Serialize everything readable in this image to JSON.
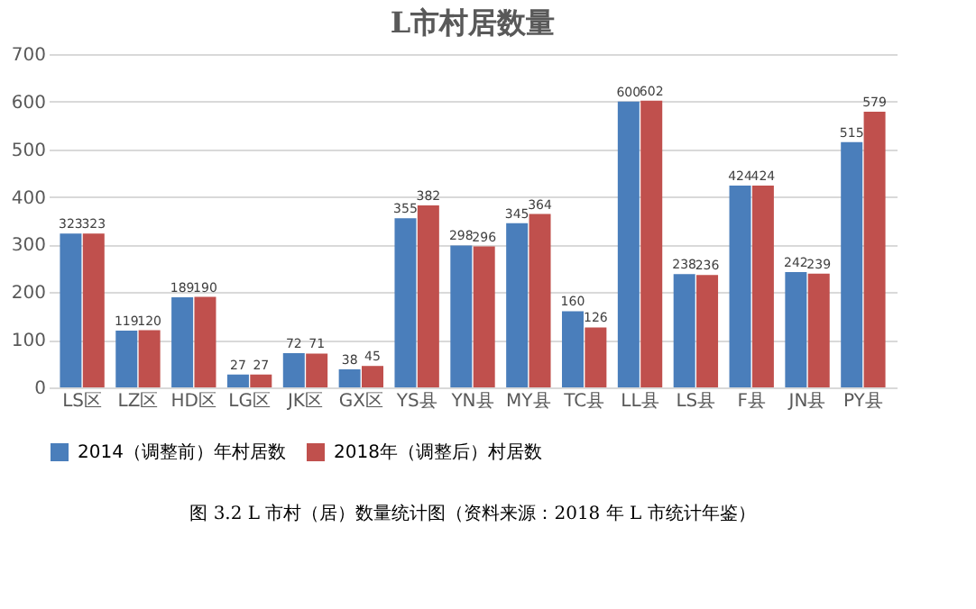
{
  "chart_data": {
    "type": "bar",
    "title": "L市村居数量",
    "categories": [
      "LS区",
      "LZ区",
      "HD区",
      "LG区",
      "JK区",
      "GX区",
      "YS县",
      "YN县",
      "MY县",
      "TC县",
      "LL县",
      "LS县",
      "F县",
      "JN县",
      "PY县"
    ],
    "series": [
      {
        "name": "2014（调整前）年村居数",
        "color": "#4a7ebb",
        "values": [
          323,
          119,
          189,
          27,
          72,
          38,
          355,
          298,
          345,
          160,
          600,
          238,
          424,
          242,
          515
        ]
      },
      {
        "name": "2018年（调整后）村居数",
        "color": "#c0504d",
        "values": [
          323,
          120,
          190,
          27,
          71,
          45,
          382,
          296,
          364,
          126,
          602,
          236,
          424,
          239,
          579
        ]
      }
    ],
    "ylim": [
      0,
      700
    ],
    "yticks": [
      0,
      100,
      200,
      300,
      400,
      500,
      600,
      700
    ],
    "grid": "y",
    "legend": "bottom",
    "data_labels": true,
    "annotations": [
      "图 3.2 L 市村（居）数量统计图（资料来源：2018 年 L 市统计年鉴）"
    ]
  }
}
